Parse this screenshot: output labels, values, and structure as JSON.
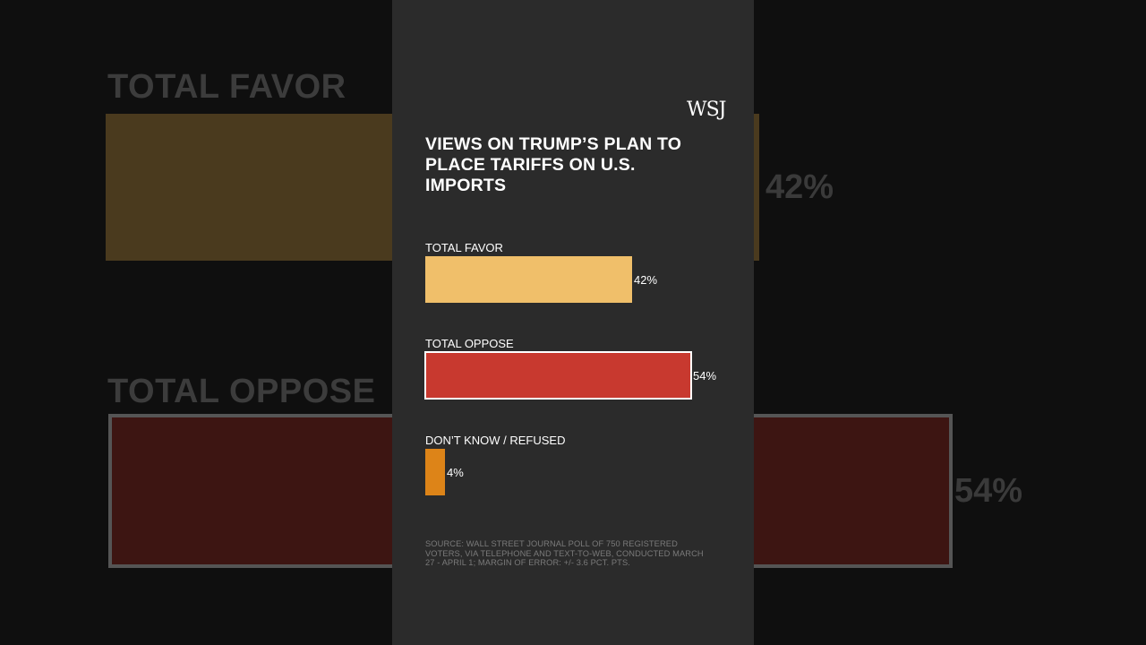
{
  "brand": {
    "logo": "WSJ"
  },
  "chart_data": {
    "type": "bar",
    "orientation": "horizontal",
    "title": "VIEWS ON TRUMP’S PLAN TO PLACE TARIFFS ON U.S. IMPORTS",
    "categories": [
      "TOTAL FAVOR",
      "TOTAL OPPOSE",
      "DON’T KNOW / REFUSED"
    ],
    "values": [
      42,
      54,
      4
    ],
    "value_labels": [
      "42%",
      "54%",
      "4%"
    ],
    "unit": "%",
    "xlim": [
      0,
      100
    ],
    "colors": [
      "#f0bf6a",
      "#c8392f",
      "#dd8418"
    ],
    "highlighted": "TOTAL OPPOSE",
    "xlabel": "",
    "ylabel": ""
  },
  "source": "SOURCE: WALL STREET JOURNAL POLL OF 750 REGISTERED VOTERS, VIA TELEPHONE AND TEXT-TO-WEB, CONDUCTED MARCH 27 - APRIL 1; MARGIN OF ERROR: +/- 3.6 PCT. PTS."
}
